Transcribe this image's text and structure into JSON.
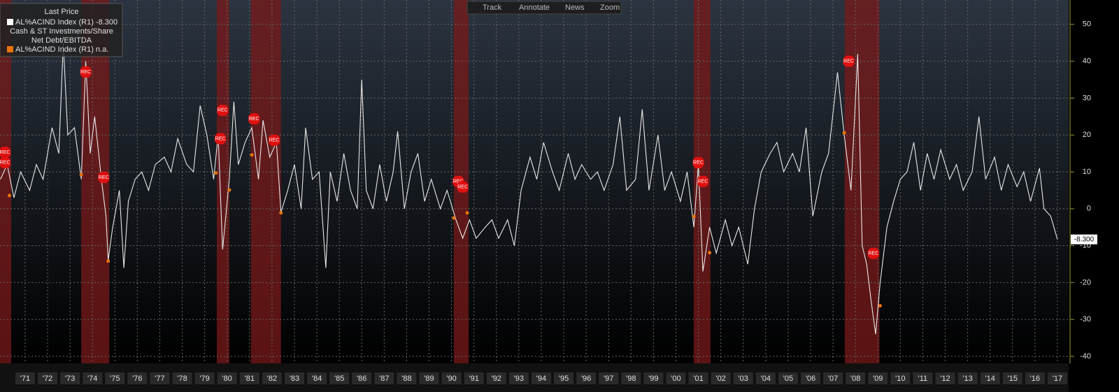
{
  "chart_data": {
    "type": "line",
    "toolbar": [
      "Track",
      "Annotate",
      "News",
      "Zoom"
    ],
    "legend_title": "Last Price",
    "series": [
      {
        "name": "Cash & ST Investments/Share",
        "legend_label": "AL%ACIND Index (R1) -8.300",
        "color": "#e8e8e8",
        "x": [
          1970.4,
          1970.7,
          1971.0,
          1971.3,
          1971.7,
          1972.0,
          1972.3,
          1972.7,
          1973.0,
          1973.2,
          1973.4,
          1973.7,
          1974.0,
          1974.2,
          1974.4,
          1974.6,
          1974.9,
          1975.1,
          1975.2,
          1975.4,
          1975.7,
          1975.9,
          1976.1,
          1976.4,
          1976.7,
          1977.0,
          1977.3,
          1977.7,
          1978.0,
          1978.3,
          1978.7,
          1979.0,
          1979.3,
          1979.6,
          1979.9,
          1980.1,
          1980.3,
          1980.6,
          1980.8,
          1981.0,
          1981.3,
          1981.6,
          1981.9,
          1982.1,
          1982.4,
          1982.7,
          1982.9,
          1983.2,
          1983.5,
          1983.8,
          1984.0,
          1984.3,
          1984.6,
          1984.9,
          1985.1,
          1985.4,
          1985.7,
          1986.0,
          1986.3,
          1986.5,
          1986.7,
          1987.0,
          1987.3,
          1987.6,
          1987.9,
          1988.1,
          1988.4,
          1988.7,
          1989.0,
          1989.3,
          1989.6,
          1990.0,
          1990.3,
          1990.7,
          1991.0,
          1991.3,
          1991.6,
          1992.0,
          1992.3,
          1992.6,
          1993.0,
          1993.3,
          1993.6,
          1994.0,
          1994.3,
          1994.6,
          1995.0,
          1995.3,
          1995.7,
          1996.0,
          1996.3,
          1996.7,
          1997.0,
          1997.3,
          1997.7,
          1998.0,
          1998.3,
          1998.7,
          1999.0,
          1999.3,
          1999.7,
          2000.0,
          2000.3,
          2000.7,
          2001.0,
          2001.3,
          2001.5,
          2001.7,
          2002.0,
          2002.3,
          2002.7,
          2003.0,
          2003.3,
          2003.7,
          2004.0,
          2004.3,
          2004.7,
          2005.0,
          2005.3,
          2005.7,
          2006.0,
          2006.3,
          2006.6,
          2007.0,
          2007.3,
          2007.7,
          2008.0,
          2008.3,
          2008.6,
          2008.8,
          2009.0,
          2009.2,
          2009.4,
          2009.6,
          2009.9,
          2010.2,
          2010.5,
          2010.8,
          2011.1,
          2011.4,
          2011.7,
          2012.0,
          2012.3,
          2012.7,
          2013.0,
          2013.3,
          2013.7,
          2014.0,
          2014.3,
          2014.7,
          2015.0,
          2015.3,
          2015.7,
          2016.0,
          2016.3,
          2016.7,
          2016.9,
          2017.2,
          2017.5
        ],
        "values": [
          8,
          12,
          3,
          10,
          5,
          12,
          8,
          22,
          15,
          45,
          20,
          22,
          8,
          40,
          15,
          25,
          8,
          -2,
          -14,
          -5,
          5,
          -16,
          2,
          8,
          10,
          5,
          12,
          14,
          10,
          19,
          12,
          10,
          28,
          20,
          8,
          20,
          -11,
          8,
          29,
          12,
          18,
          22,
          8,
          24,
          14,
          18,
          -1,
          5,
          12,
          0,
          22,
          8,
          10,
          -16,
          10,
          2,
          15,
          5,
          0,
          35,
          5,
          0,
          12,
          2,
          10,
          21,
          0,
          10,
          15,
          2,
          8,
          0,
          5,
          -3,
          -8,
          -3,
          -8,
          -5,
          -3,
          -8,
          -3,
          -10,
          5,
          14,
          8,
          18,
          10,
          5,
          15,
          8,
          12,
          8,
          10,
          5,
          12,
          25,
          5,
          8,
          27,
          5,
          20,
          5,
          10,
          2,
          10,
          -5,
          12,
          -17,
          -5,
          -12,
          -3,
          -10,
          -5,
          -15,
          0,
          10,
          15,
          18,
          10,
          15,
          10,
          22,
          -2,
          10,
          15,
          37,
          20,
          5,
          42,
          -10,
          -15,
          -25,
          -34,
          -20,
          -5,
          2,
          8,
          10,
          18,
          5,
          15,
          8,
          16,
          8,
          12,
          5,
          10,
          25,
          8,
          14,
          5,
          12,
          6,
          10,
          2,
          11,
          0,
          -2,
          -8.3
        ],
        "last_label": "-8.300"
      },
      {
        "name": "Net Debt/EBITDA",
        "legend_label": "AL%ACIND Index (R1) n.a.",
        "color": "#e8730c",
        "x": [
          1970.8,
          1974.0,
          1975.2,
          1980.0,
          1980.6,
          1981.6,
          1982.9,
          1990.6,
          1991.2,
          2001.3,
          2002.0,
          2008.0,
          2009.6
        ],
        "values": [
          3.6,
          9.3,
          -14.2,
          9.7,
          5.1,
          14.6,
          -1.1,
          -2.5,
          -1.1,
          -2.1,
          -11.9,
          20.6,
          -26.3
        ]
      }
    ],
    "recessions": [
      [
        1970.38,
        1970.88
      ],
      [
        1974.0,
        1975.25
      ],
      [
        1980.04,
        1980.6
      ],
      [
        1981.56,
        1982.9
      ],
      [
        1990.6,
        1991.26
      ],
      [
        2001.29,
        2002.04
      ],
      [
        2008.02,
        2009.57
      ]
    ],
    "rec_label": "REC",
    "rec_tags": {
      "x": [
        1970.6,
        1970.6,
        1974.2,
        1975.0,
        1980.3,
        1980.2,
        1981.7,
        1982.6,
        1990.8,
        1991.0,
        2001.5,
        2001.7,
        2008.2,
        2009.3
      ],
      "y": [
        15.3,
        12.5,
        37.1,
        8.5,
        26.7,
        19.0,
        24.4,
        18.6,
        7.4,
        5.9,
        12.5,
        7.4,
        40.0,
        -12.1
      ]
    },
    "xlim": [
      1970.38,
      2018.0
    ],
    "ylim": [
      -41.9,
      56.6
    ],
    "yticks": [
      50,
      40,
      30,
      20,
      10,
      0,
      -10,
      -20,
      -30,
      -40
    ],
    "xticks": [
      {
        "value": 1971.5,
        "label": "'71"
      },
      {
        "value": 1972.5,
        "label": "'72"
      },
      {
        "value": 1973.5,
        "label": "'73"
      },
      {
        "value": 1974.5,
        "label": "'74"
      },
      {
        "value": 1975.5,
        "label": "'75"
      },
      {
        "value": 1976.5,
        "label": "'76"
      },
      {
        "value": 1977.5,
        "label": "'77"
      },
      {
        "value": 1978.5,
        "label": "'78"
      },
      {
        "value": 1979.5,
        "label": "'79"
      },
      {
        "value": 1980.5,
        "label": "'80"
      },
      {
        "value": 1981.5,
        "label": "'81"
      },
      {
        "value": 1982.5,
        "label": "'82"
      },
      {
        "value": 1983.5,
        "label": "'83"
      },
      {
        "value": 1984.5,
        "label": "'84"
      },
      {
        "value": 1985.5,
        "label": "'85"
      },
      {
        "value": 1986.5,
        "label": "'86"
      },
      {
        "value": 1987.5,
        "label": "'87"
      },
      {
        "value": 1988.5,
        "label": "'88"
      },
      {
        "value": 1989.5,
        "label": "'89"
      },
      {
        "value": 1990.5,
        "label": "'90"
      },
      {
        "value": 1991.5,
        "label": "'91"
      },
      {
        "value": 1992.5,
        "label": "'92"
      },
      {
        "value": 1993.5,
        "label": "'93"
      },
      {
        "value": 1994.5,
        "label": "'94"
      },
      {
        "value": 1995.5,
        "label": "'95"
      },
      {
        "value": 1996.5,
        "label": "'96"
      },
      {
        "value": 1997.5,
        "label": "'97"
      },
      {
        "value": 1998.5,
        "label": "'98"
      },
      {
        "value": 1999.5,
        "label": "'99"
      },
      {
        "value": 2000.5,
        "label": "'00"
      },
      {
        "value": 2001.5,
        "label": "'01"
      },
      {
        "value": 2002.5,
        "label": "'02"
      },
      {
        "value": 2003.5,
        "label": "'03"
      },
      {
        "value": 2004.5,
        "label": "'04"
      },
      {
        "value": 2005.5,
        "label": "'05"
      },
      {
        "value": 2006.5,
        "label": "'06"
      },
      {
        "value": 2007.5,
        "label": "'07"
      },
      {
        "value": 2008.5,
        "label": "'08"
      },
      {
        "value": 2009.5,
        "label": "'09"
      },
      {
        "value": 2010.5,
        "label": "'10"
      },
      {
        "value": 2011.5,
        "label": "'11"
      },
      {
        "value": 2012.5,
        "label": "'12"
      },
      {
        "value": 2013.5,
        "label": "'13"
      },
      {
        "value": 2014.5,
        "label": "'14"
      },
      {
        "value": 2015.5,
        "label": "'15"
      },
      {
        "value": 2016.5,
        "label": "'16"
      },
      {
        "value": 2017.5,
        "label": "'17"
      }
    ],
    "grid": true
  }
}
